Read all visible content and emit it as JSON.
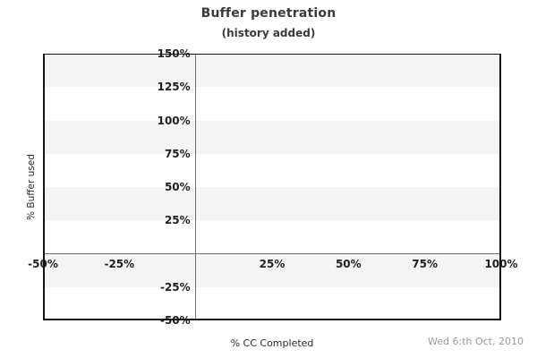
{
  "chart_data": {
    "type": "scatter",
    "title": "Buffer penetration",
    "subtitle": "(history added)",
    "xlabel": "% CC Completed",
    "ylabel": "% Buffer used",
    "xlim": [
      -50,
      100
    ],
    "ylim": [
      -50,
      150
    ],
    "x_ticks": [
      -50,
      -25,
      25,
      50,
      75,
      100
    ],
    "x_tick_labels": [
      "-50%",
      "-25%",
      "25%",
      "50%",
      "75%",
      "100%"
    ],
    "y_ticks": [
      150,
      125,
      100,
      75,
      50,
      25,
      -25,
      -50
    ],
    "y_tick_labels": [
      "150%",
      "125%",
      "100%",
      "75%",
      "50%",
      "25%",
      "-25%",
      "-50%"
    ],
    "series": [],
    "grid": "horizontal-stripes",
    "stripe_step": 25,
    "stripe_colors": [
      "#f4f4f4",
      "#ffffff"
    ],
    "axis_lines_at": {
      "x": 0,
      "y": 0
    },
    "legend": null,
    "footer_date": "Wed 6:th Oct, 2010",
    "colors": {
      "background": "#ffffff",
      "stripe_gray": "#f4f4f4",
      "inner_axis_line": "#6e6e6e",
      "plot_border": "#161616",
      "tick_text": "#1f1f1f",
      "title_text": "#3a3a3a",
      "date_text": "#9b9b9b"
    }
  }
}
